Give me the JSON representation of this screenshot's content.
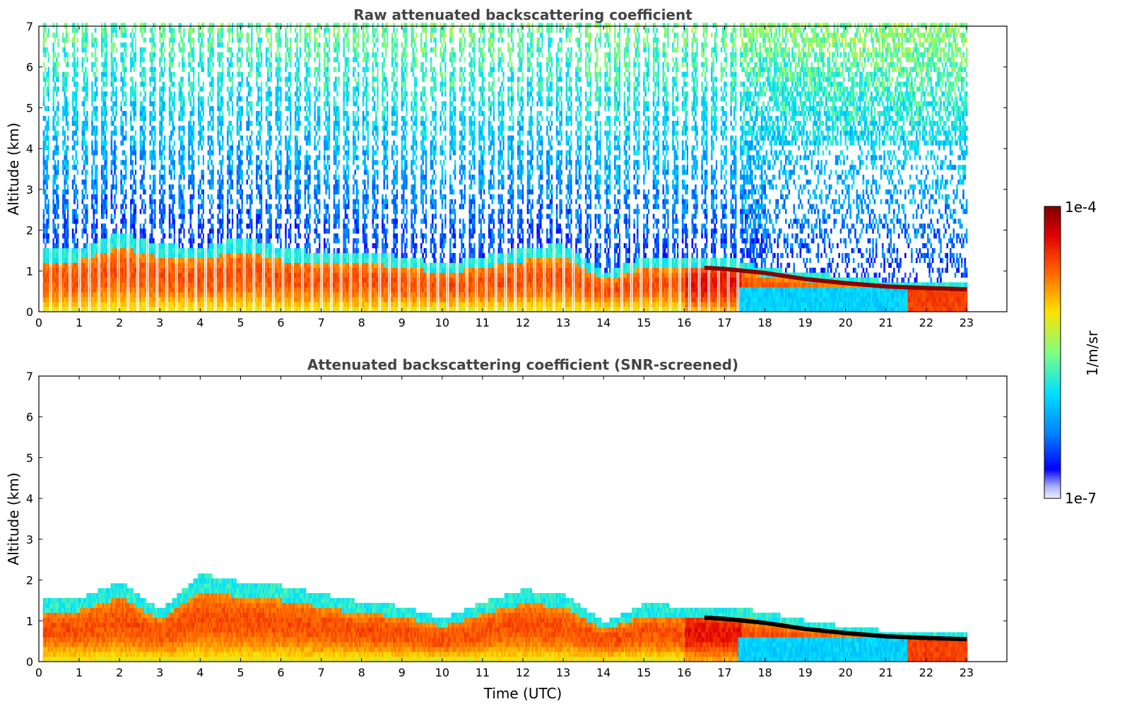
{
  "chart_data": [
    {
      "type": "heatmap",
      "title": "Raw attenuated backscattering coefficient",
      "xlabel": "",
      "ylabel": "Altitude (km)",
      "xlim": [
        0,
        24
      ],
      "ylim": [
        0,
        7
      ],
      "xticks": [
        "0",
        "1",
        "2",
        "3",
        "4",
        "5",
        "6",
        "7",
        "8",
        "9",
        "10",
        "11",
        "12",
        "13",
        "14",
        "15",
        "16",
        "17",
        "18",
        "19",
        "20",
        "21",
        "22",
        "23"
      ],
      "yticks": [
        "0",
        "1",
        "2",
        "3",
        "4",
        "5",
        "6",
        "7"
      ],
      "data_time_range": [
        0.1,
        23
      ],
      "boundary_layer_top_km": [
        [
          0.2,
          1.5
        ],
        [
          1,
          1.5
        ],
        [
          2,
          1.9
        ],
        [
          3,
          1.6
        ],
        [
          4,
          1.5
        ],
        [
          5,
          1.8
        ],
        [
          6,
          1.5
        ],
        [
          7,
          1.4
        ],
        [
          8,
          1.4
        ],
        [
          9,
          1.3
        ],
        [
          10,
          1.1
        ],
        [
          11,
          1.3
        ],
        [
          12,
          1.5
        ],
        [
          13,
          1.6
        ],
        [
          14,
          0.9
        ],
        [
          15,
          1.3
        ],
        [
          16,
          1.2
        ],
        [
          17,
          1.3
        ],
        [
          18,
          1.0
        ],
        [
          19,
          0.9
        ],
        [
          20,
          0.8
        ],
        [
          21,
          0.7
        ],
        [
          22,
          0.7
        ],
        [
          23,
          0.7
        ]
      ],
      "cloud_layer_km": [
        [
          16.5,
          1.08
        ],
        [
          17,
          1.05
        ],
        [
          18,
          0.95
        ],
        [
          19,
          0.8
        ],
        [
          20,
          0.7
        ],
        [
          21,
          0.62
        ],
        [
          22,
          0.58
        ],
        [
          23,
          0.55
        ]
      ]
    },
    {
      "type": "heatmap",
      "title": "Attenuated backscattering coefficient (SNR-screened)",
      "xlabel": "Time (UTC)",
      "ylabel": "Altitude (km)",
      "xlim": [
        0,
        24
      ],
      "ylim": [
        0,
        7
      ],
      "xticks": [
        "0",
        "1",
        "2",
        "3",
        "4",
        "5",
        "6",
        "7",
        "8",
        "9",
        "10",
        "11",
        "12",
        "13",
        "14",
        "15",
        "16",
        "17",
        "18",
        "19",
        "20",
        "21",
        "22",
        "23"
      ],
      "yticks": [
        "0",
        "1",
        "2",
        "3",
        "4",
        "5",
        "6",
        "7"
      ],
      "data_time_range": [
        0.1,
        23
      ],
      "boundary_layer_top_km": [
        [
          0.2,
          1.5
        ],
        [
          1,
          1.5
        ],
        [
          2,
          1.9
        ],
        [
          3,
          1.2
        ],
        [
          4,
          2.1
        ],
        [
          5,
          1.9
        ],
        [
          6,
          1.8
        ],
        [
          7,
          1.6
        ],
        [
          8,
          1.4
        ],
        [
          9,
          1.3
        ],
        [
          10,
          1.0
        ],
        [
          11,
          1.4
        ],
        [
          12,
          1.7
        ],
        [
          13,
          1.6
        ],
        [
          14,
          0.9
        ],
        [
          15,
          1.35
        ],
        [
          16,
          1.3
        ],
        [
          17,
          1.3
        ],
        [
          18,
          1.15
        ],
        [
          19,
          0.95
        ],
        [
          20,
          0.8
        ],
        [
          21,
          0.7
        ],
        [
          22,
          0.65
        ],
        [
          23,
          0.65
        ]
      ],
      "cloud_layer_km": [
        [
          16.5,
          1.08
        ],
        [
          17,
          1.05
        ],
        [
          18,
          0.95
        ],
        [
          19,
          0.8
        ],
        [
          20,
          0.7
        ],
        [
          21,
          0.62
        ],
        [
          22,
          0.58
        ],
        [
          23,
          0.55
        ]
      ]
    }
  ],
  "colorbar": {
    "label": "1/m/sr",
    "max_label": "1e-4",
    "min_label": "1e-7",
    "scale": "log",
    "range": [
      1e-07,
      0.0001
    ]
  }
}
